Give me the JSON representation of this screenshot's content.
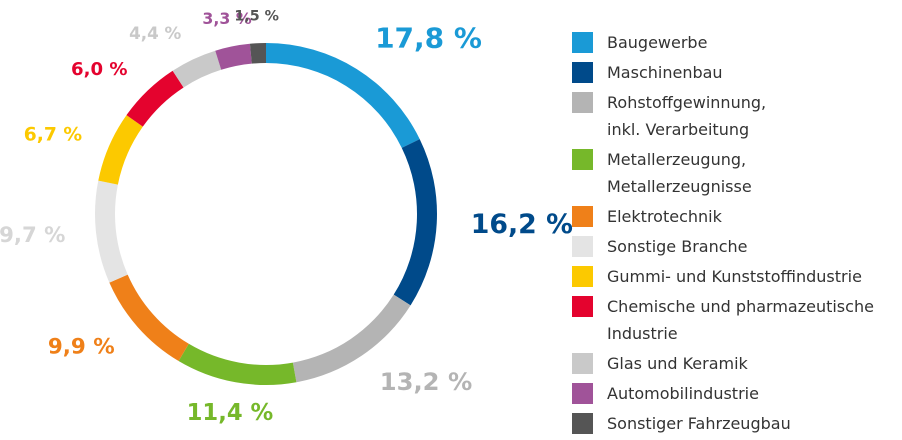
{
  "chart_data": {
    "type": "donut",
    "categories": [
      "Baugewerbe",
      "Maschinenbau",
      "Rohstoffgewinnung,\ninkl. Verarbeitung",
      "Metallerzeugung,\nMetallerzeugnisse",
      "Elektrotechnik",
      "Sonstige Branche",
      "Gummi- und Kunststoffindustrie",
      "Chemische und pharmazeutische\nIndustrie",
      "Glas und Keramik",
      "Automobilindustrie",
      "Sonstiger Fahrzeugbau"
    ],
    "values": [
      17.8,
      16.2,
      13.2,
      11.4,
      9.9,
      9.7,
      6.7,
      6.0,
      4.4,
      3.3,
      1.5
    ],
    "value_labels": [
      "17,8 %",
      "16,2 %",
      "13,2 %",
      "11,4 %",
      "9,9 %",
      "9,7 %",
      "6,7 %",
      "6,0 %",
      "4,4 %",
      "3,3 %",
      "1,5 %"
    ],
    "colors": [
      "#1a9ad6",
      "#004a8a",
      "#b4b4b4",
      "#76b82a",
      "#ef8019",
      "#e4e4e4",
      "#fcc900",
      "#e4032e",
      "#c9c9c9",
      "#a05399",
      "#555555"
    ],
    "legend": "right"
  }
}
